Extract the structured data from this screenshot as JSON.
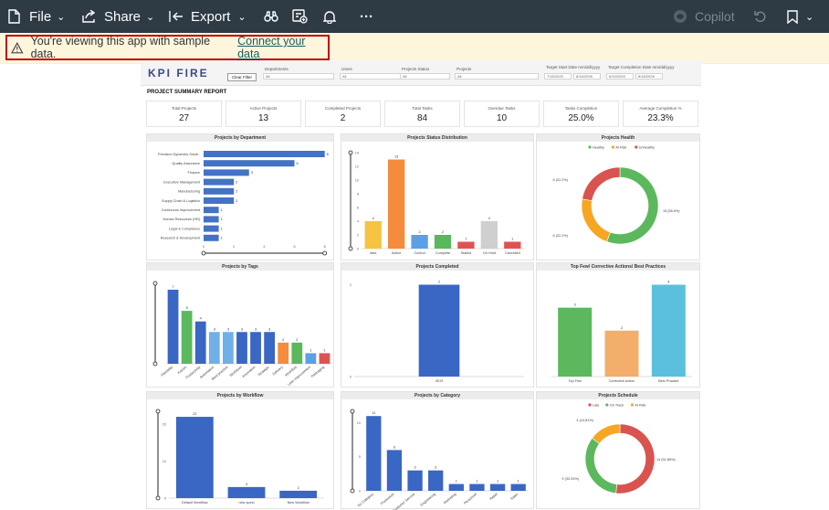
{
  "toolbar": {
    "file_label": "File",
    "share_label": "Share",
    "export_label": "Export",
    "copilot_label": "Copilot",
    "more_label": "···"
  },
  "banner": {
    "message": "You're viewing this app with sample data.",
    "link": "Connect your data"
  },
  "report": {
    "logo": "KPI FIRE",
    "title": "PROJECT SUMMARY REPORT",
    "clear_filter": "Clear Filter",
    "filters": [
      {
        "label": "Departments",
        "value": "All"
      },
      {
        "label": "Users",
        "value": "All"
      },
      {
        "label": "Projects Status",
        "value": "All"
      },
      {
        "label": "Projects",
        "value": "All"
      }
    ],
    "date_filters": [
      {
        "label": "Target Start Date mm/dd/yyyy",
        "from": "7/18/2020",
        "to": "8/18/2026"
      },
      {
        "label": "Target Completion Date mm/dd/yyyy",
        "from": "6/10/2020",
        "to": "8/18/2026"
      }
    ],
    "kpis": [
      {
        "label": "Total Projects",
        "value": "27"
      },
      {
        "label": "Active Projects",
        "value": "13"
      },
      {
        "label": "Completed Projects",
        "value": "2"
      },
      {
        "label": "Total Tasks",
        "value": "84"
      },
      {
        "label": "Overdue Tasks",
        "value": "10"
      },
      {
        "label": "Tasks Completion",
        "value": "25.0%"
      },
      {
        "label": "Average Completion %",
        "value": "23.3%"
      }
    ]
  },
  "chart_data": [
    {
      "id": "dept",
      "type": "bar",
      "orientation": "horizontal",
      "title": "Projects by Department",
      "categories": [
        "Precision Dynamics Soluti..",
        "Quality Assurance",
        "Finance",
        "Executive Management",
        "Manufacturing",
        "Supply Chain & Logistics",
        "Continuous Improvement",
        "Human Resources (HR)",
        "Legal & Compliance",
        "Research & Development"
      ],
      "values": [
        8,
        6,
        3,
        2,
        2,
        2,
        1,
        1,
        1,
        1
      ],
      "xticks": [
        "0",
        "2",
        "4",
        "6",
        "8"
      ],
      "xlim": [
        0,
        8.2
      ],
      "color": "#4472c4"
    },
    {
      "id": "status",
      "type": "bar",
      "title": "Projects Status Distribution",
      "categories": [
        "Idea",
        "Active",
        "Control",
        "Complete",
        "Stalled",
        "On Hold",
        "Cancelled"
      ],
      "values": [
        4,
        13,
        2,
        2,
        1,
        4,
        1
      ],
      "colors": [
        "#f6c343",
        "#f58b3c",
        "#5aa0e6",
        "#59b85c",
        "#e05252",
        "#cfcfcf",
        "#e05252"
      ],
      "yticks": [
        "0",
        "2",
        "4",
        "6",
        "8",
        "10",
        "12",
        "14"
      ],
      "ylim": [
        0,
        14
      ]
    },
    {
      "id": "health",
      "type": "pie",
      "title": "Projects Health",
      "legend": [
        "Healthy",
        "At Risk",
        "Unhealthy"
      ],
      "values": [
        15,
        6,
        6
      ],
      "colors": [
        "#5cb85c",
        "#f5a623",
        "#d9534f"
      ],
      "labels": [
        "15 (55.6%)",
        "6 (22.2%)",
        "6 (22.2%)"
      ]
    },
    {
      "id": "tags",
      "type": "bar",
      "title": "Projects by Tags",
      "categories": [
        "Flexibility",
        "Kaizen",
        "Productivity",
        "Automation",
        "Best practice",
        "Workload",
        "Innovation",
        "Strategic",
        "Delivery",
        "Workflow",
        "Lean improvement",
        "Packaging"
      ],
      "values": [
        7,
        5,
        4,
        3,
        3,
        3,
        3,
        3,
        2,
        2,
        1,
        1
      ],
      "colors": [
        "#3a66c4",
        "#5bb85c",
        "#3a66c4",
        "#6fb0e8",
        "#6fb0e8",
        "#3a66c4",
        "#3a66c4",
        "#3a66c4",
        "#f58b3c",
        "#5bb85c",
        "#5aa0e6",
        "#e05252"
      ],
      "ylim": [
        0,
        7.6
      ]
    },
    {
      "id": "completed",
      "type": "bar",
      "title": "Projects Completed",
      "categories": [
        "ISO9"
      ],
      "values": [
        2
      ],
      "yticks": [
        "0",
        "2"
      ],
      "ylim": [
        0,
        2.05
      ],
      "color": "#3a66c4"
    },
    {
      "id": "topfew",
      "type": "bar",
      "title": "Top Few/ Corrective Actions/ Best Practices",
      "categories": [
        "Top Few",
        "Corrective Action",
        "Best Practice"
      ],
      "values": [
        3,
        2,
        4
      ],
      "colors": [
        "#5cb85c",
        "#f2ae6a",
        "#5bc0de"
      ],
      "ylim": [
        0,
        4.1
      ]
    },
    {
      "id": "workflow",
      "type": "bar",
      "title": "Projects by Workflow",
      "categories": [
        "Default Workflow",
        "new speci",
        "New Workflow"
      ],
      "values": [
        22,
        3,
        2
      ],
      "yticks": [
        "0",
        "10",
        "20"
      ],
      "ylim": [
        0,
        23.5
      ],
      "color": "#3a66c4"
    },
    {
      "id": "category",
      "type": "bar",
      "title": "Projects by Category",
      "categories": [
        "No Category",
        "Production",
        "Customer Service",
        "Engineering",
        "Marketing",
        "Personnel",
        "Retail",
        "Sales"
      ],
      "values": [
        11,
        6,
        3,
        3,
        1,
        1,
        1,
        1
      ],
      "yticks": [
        "0",
        "5",
        "10"
      ],
      "ylim": [
        0,
        11.7
      ],
      "color": "#3a66c4"
    },
    {
      "id": "schedule",
      "type": "pie",
      "title": "Projects Schedule",
      "legend": [
        "Late",
        "On Track",
        "At Risk"
      ],
      "values": [
        14,
        9,
        4
      ],
      "colors": [
        "#d9534f",
        "#5cb85c",
        "#f5a623"
      ],
      "labels": [
        "14 (51.85%)",
        "9 (33.33%)",
        "4 (14.81%)"
      ]
    }
  ]
}
